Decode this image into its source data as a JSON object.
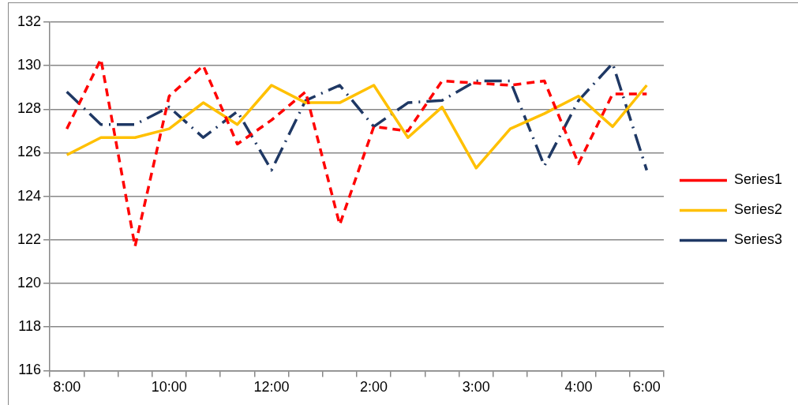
{
  "chart_data": {
    "type": "line",
    "categories": [
      "8:00",
      null,
      null,
      "10:00",
      null,
      null,
      "12:00",
      null,
      null,
      "2:00",
      null,
      null,
      "3:00",
      null,
      null,
      "4:00",
      null,
      "6:00"
    ],
    "series": [
      {
        "name": "Series1",
        "color": "#ff0000",
        "line_style": "dashed",
        "values": [
          127.1,
          130.3,
          121.7,
          128.6,
          130.0,
          126.4,
          127.5,
          128.8,
          122.7,
          127.2,
          127.0,
          129.3,
          129.2,
          129.1,
          129.3,
          125.5,
          128.7,
          128.7
        ]
      },
      {
        "name": "Series2",
        "color": "#ffc000",
        "line_style": "solid",
        "values": [
          125.9,
          126.7,
          126.7,
          127.1,
          128.3,
          127.3,
          129.1,
          128.3,
          128.3,
          129.1,
          126.7,
          128.1,
          125.3,
          127.1,
          127.8,
          128.6,
          127.2,
          129.1
        ]
      },
      {
        "name": "Series3",
        "color": "#1f3864",
        "line_style": "dashdot",
        "values": [
          128.8,
          127.3,
          127.3,
          128.1,
          126.7,
          127.9,
          125.2,
          128.4,
          129.1,
          127.2,
          128.3,
          128.4,
          129.3,
          129.3,
          125.4,
          128.4,
          130.1,
          125.2
        ]
      }
    ],
    "ylim": [
      116,
      132
    ],
    "yticks": [
      116,
      118,
      120,
      122,
      124,
      126,
      128,
      130,
      132
    ],
    "grid": "y",
    "legend": "right",
    "marker": "none"
  }
}
